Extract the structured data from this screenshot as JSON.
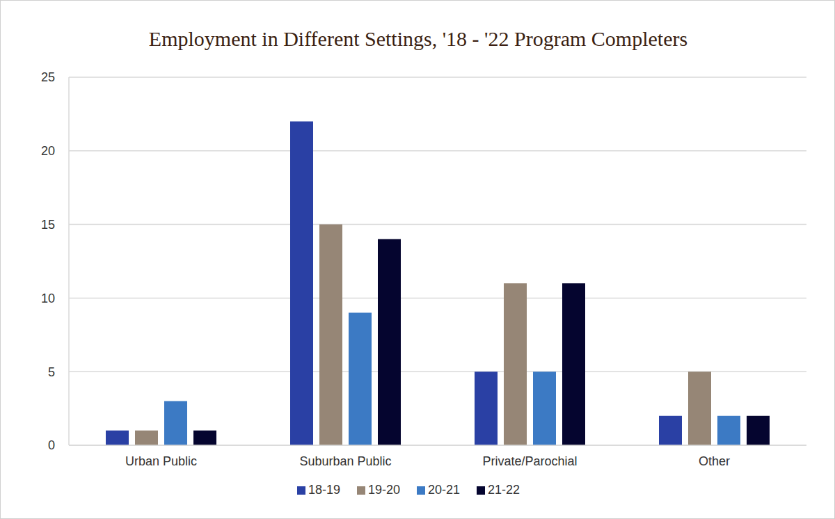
{
  "chart_data": {
    "type": "bar",
    "title": "Employment in Different Settings, '18 - '22 Program Completers",
    "categories": [
      "Urban Public",
      "Suburban Public",
      "Private/Parochial",
      "Other"
    ],
    "series": [
      {
        "name": "18-19",
        "color": "#2a40a4",
        "values": [
          1,
          22,
          5,
          2
        ]
      },
      {
        "name": "19-20",
        "color": "#968676",
        "values": [
          1,
          15,
          11,
          5
        ]
      },
      {
        "name": "20-21",
        "color": "#3c7ac4",
        "values": [
          3,
          9,
          5,
          2
        ]
      },
      {
        "name": "21-22",
        "color": "#05052f",
        "values": [
          1,
          14,
          11,
          2
        ]
      }
    ],
    "ylim": [
      0,
      25
    ],
    "yticks": [
      0,
      5,
      10,
      15,
      20,
      25
    ],
    "grid": true,
    "legend": "bottom"
  }
}
